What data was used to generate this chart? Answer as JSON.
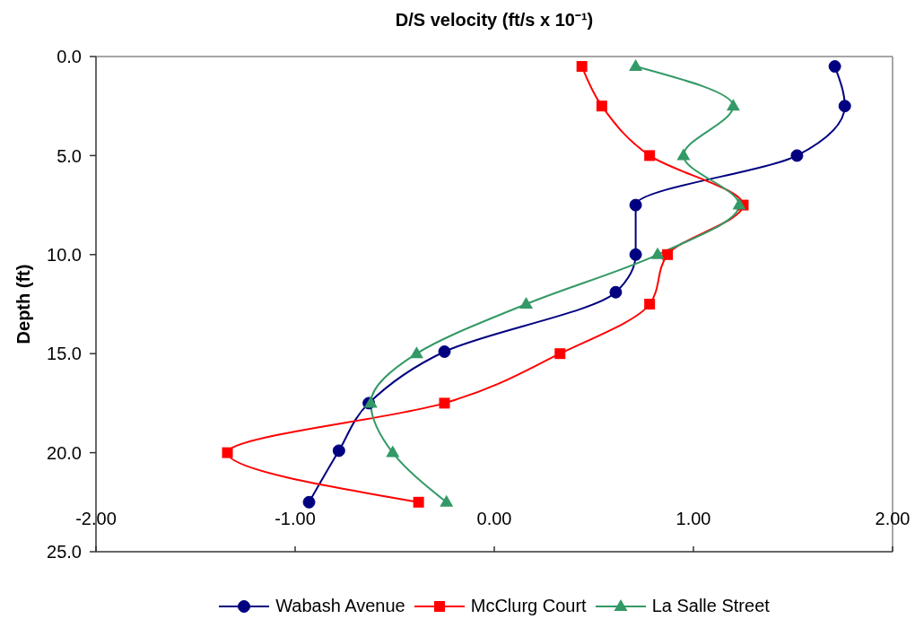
{
  "chart_data": {
    "type": "line",
    "title": "D/S velocity (ft/s x 10⁻¹)",
    "ylabel": "Depth (ft)",
    "xlim": [
      -2,
      2
    ],
    "xticks": [
      {
        "value": -2,
        "label": "-2.00"
      },
      {
        "value": -1,
        "label": "-1.00"
      },
      {
        "value": 0,
        "label": "0.00"
      },
      {
        "value": 1,
        "label": "1.00"
      },
      {
        "value": 2,
        "label": "2.00"
      }
    ],
    "ylim": [
      25,
      0
    ],
    "yticks": [
      {
        "value": 0,
        "label": "0.0"
      },
      {
        "value": 5,
        "label": "5.0"
      },
      {
        "value": 10,
        "label": "10.0"
      },
      {
        "value": 15,
        "label": "15.0"
      },
      {
        "value": 20,
        "label": "20.0"
      },
      {
        "value": 25,
        "label": "25.0"
      }
    ],
    "legend": "bottom",
    "series": [
      {
        "name": "Wabash Avenue",
        "color": "#000080",
        "marker": "circle",
        "x": [
          1.71,
          1.76,
          1.52,
          0.71,
          0.71,
          0.61,
          -0.25,
          -0.63,
          -0.78,
          -0.93
        ],
        "values": [
          0.5,
          2.5,
          5.0,
          7.5,
          10.0,
          11.9,
          14.9,
          17.5,
          19.9,
          22.5
        ]
      },
      {
        "name": "McClurg Court",
        "color": "#ff0000",
        "marker": "square",
        "x": [
          0.44,
          0.54,
          0.78,
          1.25,
          0.87,
          0.78,
          0.33,
          -0.25,
          -1.34,
          -0.38
        ],
        "values": [
          0.5,
          2.5,
          5.0,
          7.5,
          10.0,
          12.5,
          15.0,
          17.5,
          20.0,
          22.5
        ]
      },
      {
        "name": "La Salle Street",
        "color": "#339966",
        "marker": "triangle",
        "x": [
          0.71,
          1.2,
          0.95,
          1.23,
          0.82,
          0.16,
          -0.39,
          -0.62,
          -0.51,
          -0.24
        ],
        "values": [
          0.5,
          2.5,
          5.0,
          7.5,
          10.0,
          12.5,
          15.0,
          17.5,
          20.0,
          22.5
        ]
      }
    ]
  }
}
